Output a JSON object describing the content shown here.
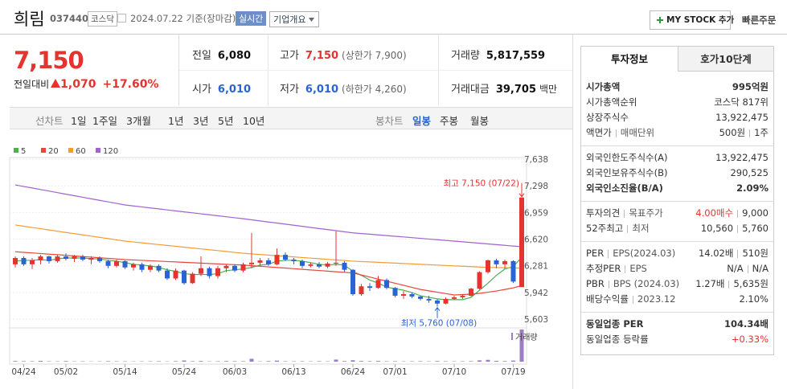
{
  "header": {
    "name": "희림",
    "code": "037440",
    "market": "코스닥",
    "date": "2024.07.22 기준(장마감)",
    "realtime": "실시간",
    "company_info": "기업개요",
    "my_stock": "MY STOCK 추가",
    "quick_order": "빠른주문"
  },
  "quote": {
    "price": "7,150",
    "change_label": "전일대비",
    "change": "1,070",
    "change_rate": "+17.60%",
    "fields": [
      {
        "label": "전일",
        "value": "6,080"
      },
      {
        "label": "고가",
        "value": "7,150",
        "note": "(상한가 7,900)"
      },
      {
        "label": "거래량",
        "value": "5,817,559"
      },
      {
        "label": "시가",
        "value": "6,010"
      },
      {
        "label": "저가",
        "value": "6,010",
        "note": "(하한가 4,260)"
      },
      {
        "label": "거래대금",
        "value": "39,705",
        "unit": "백만"
      }
    ]
  },
  "periods": {
    "line_label": "선차트",
    "line": [
      "1일",
      "1주일",
      "3개월",
      "1년",
      "3년",
      "5년",
      "10년"
    ],
    "candle_label": "봉차트",
    "candle": [
      "일봉",
      "주봉",
      "월봉"
    ]
  },
  "price_chart": {
    "type": "candlestick",
    "up_color": "#e3342f",
    "down_color": "#2a64d4",
    "grid": true,
    "categories": [
      null,
      "04/24",
      null,
      null,
      null,
      null,
      "05/02",
      null,
      null,
      null,
      null,
      null,
      null,
      "05/14",
      null,
      null,
      null,
      null,
      null,
      null,
      "05/24",
      null,
      null,
      null,
      null,
      null,
      "06/03",
      null,
      null,
      null,
      null,
      null,
      null,
      "06/13",
      null,
      null,
      null,
      null,
      null,
      null,
      "06/24",
      null,
      null,
      null,
      null,
      "07/01",
      null,
      null,
      null,
      null,
      null,
      null,
      "07/10",
      null,
      null,
      null,
      null,
      null,
      null,
      "07/19",
      null
    ],
    "open": [
      6300,
      6380,
      6300,
      6350,
      6400,
      6340,
      6400,
      6370,
      6400,
      6360,
      6380,
      6340,
      6280,
      6340,
      6260,
      6300,
      6230,
      6280,
      6220,
      6120,
      6220,
      6060,
      6180,
      6250,
      6150,
      6250,
      6280,
      6220,
      6300,
      6320,
      6350,
      6300,
      6420,
      6360,
      6340,
      6280,
      6300,
      6270,
      6310,
      6320,
      6230,
      5920,
      6020,
      6000,
      6100,
      6000,
      5900,
      5920,
      5890,
      5860,
      5840,
      5800,
      5860,
      5880,
      5900,
      5990,
      6200,
      6350,
      6300,
      6340,
      6010
    ],
    "high": [
      6400,
      6400,
      6380,
      6420,
      6410,
      6420,
      6440,
      6420,
      6420,
      6400,
      6400,
      6360,
      6360,
      6350,
      6320,
      6320,
      6300,
      6300,
      6250,
      6250,
      6230,
      6200,
      6400,
      6270,
      6280,
      6300,
      6300,
      6320,
      6700,
      6380,
      6380,
      6500,
      6450,
      6380,
      6360,
      6320,
      6330,
      6330,
      6720,
      6340,
      6240,
      6050,
      6060,
      6150,
      6120,
      6010,
      5960,
      5940,
      5900,
      5900,
      5860,
      5880,
      5900,
      5920,
      6000,
      6210,
      6360,
      6370,
      6360,
      6350,
      7150
    ],
    "low": [
      6260,
      6280,
      6240,
      6300,
      6310,
      6320,
      6350,
      6330,
      6340,
      6300,
      6320,
      6250,
      6260,
      6240,
      6220,
      6200,
      6200,
      6200,
      6100,
      6100,
      6040,
      6050,
      6150,
      6120,
      6120,
      6200,
      6200,
      6200,
      6250,
      6280,
      6280,
      6290,
      6340,
      6300,
      6250,
      6260,
      6250,
      6250,
      6280,
      6200,
      5900,
      5900,
      5960,
      5990,
      5980,
      5880,
      5860,
      5870,
      5840,
      5810,
      5760,
      5790,
      5850,
      5860,
      5890,
      5980,
      6180,
      6250,
      6250,
      6060,
      6010
    ],
    "close": [
      6380,
      6300,
      6350,
      6400,
      6340,
      6400,
      6370,
      6400,
      6360,
      6380,
      6340,
      6280,
      6340,
      6260,
      6300,
      6230,
      6280,
      6220,
      6120,
      6220,
      6060,
      6180,
      6250,
      6150,
      6250,
      6280,
      6220,
      6300,
      6320,
      6350,
      6300,
      6420,
      6360,
      6340,
      6280,
      6300,
      6270,
      6310,
      6320,
      6230,
      5920,
      6020,
      6000,
      6100,
      6000,
      5900,
      5920,
      5890,
      5860,
      5840,
      5800,
      5860,
      5880,
      5900,
      5990,
      6200,
      6350,
      6300,
      6340,
      6080,
      7150
    ],
    "volume": [
      120000,
      90000,
      80000,
      150000,
      70000,
      60000,
      110000,
      60000,
      70000,
      50000,
      60000,
      90000,
      70000,
      60000,
      50000,
      60000,
      70000,
      80000,
      60000,
      90000,
      210000,
      80000,
      120000,
      60000,
      70000,
      110000,
      90000,
      80000,
      520000,
      60000,
      110000,
      190000,
      80000,
      60000,
      70000,
      60000,
      90000,
      60000,
      380000,
      110000,
      260000,
      120000,
      90000,
      130000,
      70000,
      80000,
      60000,
      70000,
      90000,
      60000,
      110000,
      70000,
      60000,
      70000,
      90000,
      240000,
      330000,
      150000,
      110000,
      200000,
      5817559
    ],
    "volume_label": "거래량",
    "volume_color": "#9b7fc6",
    "moving_averages": [
      {
        "name": "5",
        "color": "#4caf50",
        "values": [
          6340,
          6350,
          6350,
          6360,
          6350,
          6370,
          6380,
          6380,
          6380,
          6370,
          6370,
          6350,
          6340,
          6320,
          6300,
          6290,
          6280,
          6260,
          6230,
          6210,
          6180,
          6170,
          6170,
          6170,
          6180,
          6220,
          6230,
          6240,
          6260,
          6290,
          6300,
          6340,
          6350,
          6350,
          6340,
          6320,
          6300,
          6290,
          6300,
          6290,
          6210,
          6160,
          6100,
          6060,
          6010,
          5990,
          5970,
          5940,
          5900,
          5880,
          5860,
          5850,
          5850,
          5850,
          5880,
          5970,
          6060,
          6160,
          6240,
          6270,
          6390
        ]
      },
      {
        "name": "20",
        "color": "#e8453c",
        "values": [
          6460,
          6452,
          6445,
          6437,
          6429,
          6422,
          6414,
          6406,
          6398,
          6391,
          6383,
          6375,
          6368,
          6360,
          6355,
          6350,
          6345,
          6340,
          6335,
          6330,
          6325,
          6320,
          6315,
          6310,
          6305,
          6300,
          6295,
          6290,
          6282,
          6275,
          6267,
          6259,
          6252,
          6244,
          6236,
          6228,
          6221,
          6213,
          6205,
          6198,
          6190,
          6164,
          6138,
          6111,
          6085,
          6059,
          6033,
          6006,
          5980,
          5962,
          5945,
          5927,
          5910,
          5915,
          5920,
          5930,
          5945,
          5960,
          5980,
          6000,
          6030
        ]
      },
      {
        "name": "60",
        "color": "#f39c34",
        "values": [
          6800,
          6784,
          6768,
          6753,
          6737,
          6721,
          6705,
          6690,
          6674,
          6658,
          6642,
          6627,
          6611,
          6595,
          6584,
          6573,
          6562,
          6551,
          6540,
          6529,
          6518,
          6507,
          6496,
          6485,
          6474,
          6463,
          6451,
          6440,
          6432,
          6425,
          6417,
          6409,
          6402,
          6394,
          6386,
          6378,
          6371,
          6363,
          6355,
          6348,
          6340,
          6335,
          6330,
          6325,
          6320,
          6315,
          6310,
          6305,
          6300,
          6295,
          6290,
          6285,
          6280,
          6275,
          6270,
          6265,
          6260,
          6258,
          6256,
          6254,
          6252
        ]
      },
      {
        "name": "120",
        "color": "#a262cf",
        "values": [
          7310,
          7290,
          7271,
          7251,
          7232,
          7212,
          7192,
          7173,
          7153,
          7133,
          7114,
          7094,
          7075,
          7055,
          7042,
          7030,
          7017,
          7005,
          6992,
          6980,
          6967,
          6955,
          6942,
          6930,
          6917,
          6905,
          6892,
          6880,
          6866,
          6852,
          6838,
          6825,
          6811,
          6797,
          6783,
          6769,
          6755,
          6742,
          6728,
          6714,
          6700,
          6691,
          6683,
          6674,
          6665,
          6656,
          6648,
          6639,
          6630,
          6621,
          6613,
          6604,
          6595,
          6586,
          6577,
          6568,
          6559,
          6550,
          6541,
          6532,
          6523
        ]
      }
    ],
    "ylim": [
      5603,
      7638
    ],
    "yticks": [
      {
        "value": 5603,
        "label": "5,603"
      },
      {
        "value": 5942,
        "label": "5,942"
      },
      {
        "value": 6281,
        "label": "6,281"
      },
      {
        "value": 6620,
        "label": "6,620"
      },
      {
        "value": 6959,
        "label": "6,959"
      },
      {
        "value": 7298,
        "label": "7,298"
      },
      {
        "value": 7638,
        "label": "7,638"
      }
    ],
    "high_label": "최고 7,150 (07/22)",
    "low_label": "최저 5,760 (07/08)"
  },
  "info": {
    "tabs": [
      "투자정보",
      "호가10단계"
    ],
    "groups": [
      [
        {
          "label": [
            "시가총액"
          ],
          "value": [
            "995억원"
          ],
          "bold": true
        },
        {
          "label": [
            "시가총액순위"
          ],
          "value": [
            "코스닥 817위"
          ]
        },
        {
          "label": [
            "상장주식수"
          ],
          "value": [
            "13,922,475"
          ]
        },
        {
          "label": [
            "액면가",
            "매매단위"
          ],
          "value": [
            "500원",
            "1주"
          ]
        }
      ],
      [
        {
          "label": [
            "외국인한도주식수(A)"
          ],
          "value": [
            "13,922,475"
          ]
        },
        {
          "label": [
            "외국인보유주식수(B)"
          ],
          "value": [
            "290,525"
          ]
        },
        {
          "label": [
            "외국인소진율(B/A)"
          ],
          "value": [
            "2.09%"
          ],
          "bold": true
        }
      ],
      [
        {
          "label": [
            "투자의견",
            "목표주가"
          ],
          "value": [
            "4.00매수",
            "9,000"
          ],
          "value_colors": [
            "#e3342f",
            null
          ]
        },
        {
          "label": [
            "52주최고",
            "최저"
          ],
          "value": [
            "10,560",
            "5,760"
          ]
        }
      ],
      [
        {
          "label": [
            "PER",
            "EPS(2024.03)"
          ],
          "value": [
            "14.02배",
            "510원"
          ]
        },
        {
          "label": [
            "추정PER",
            "EPS"
          ],
          "value": [
            "N/A",
            "N/A"
          ]
        },
        {
          "label": [
            "PBR",
            "BPS (2024.03)"
          ],
          "value": [
            "1.27배",
            "5,635원"
          ]
        },
        {
          "label": [
            "배당수익률",
            "2023.12"
          ],
          "value": [
            "2.10%"
          ]
        }
      ],
      [
        {
          "label": [
            "동일업종 PER"
          ],
          "value": [
            "104.34배"
          ],
          "bold": true
        },
        {
          "label": [
            "동일업종 등락률"
          ],
          "value": [
            "+0.33%"
          ],
          "value_colors": [
            "#e3342f"
          ]
        }
      ]
    ]
  }
}
